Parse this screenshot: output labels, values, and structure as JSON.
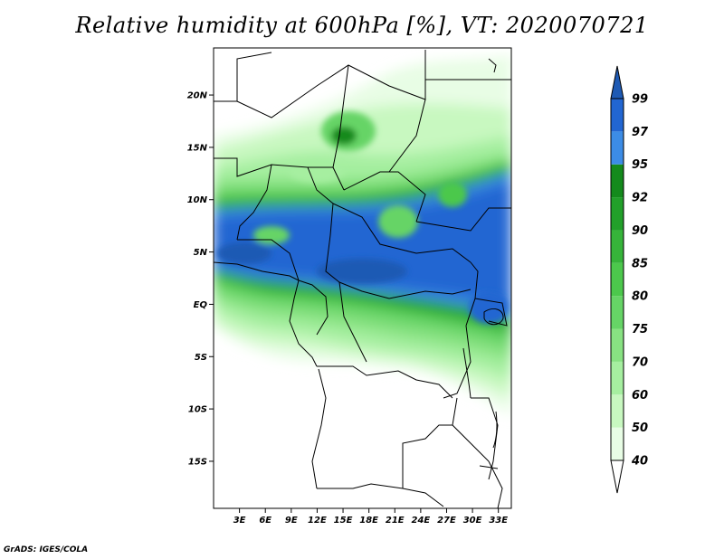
{
  "title": "Relative humidity at 600hPa [%], VT: 2020070721",
  "credit": "GrADS: IGES/COLA",
  "map": {
    "lon_range": [
      0,
      34.5
    ],
    "lat_range": [
      -19.5,
      24.5
    ],
    "lat_ticks": [
      {
        "value": 20,
        "label": "20N"
      },
      {
        "value": 15,
        "label": "15N"
      },
      {
        "value": 10,
        "label": "10N"
      },
      {
        "value": 5,
        "label": "5N"
      },
      {
        "value": 0,
        "label": "EQ"
      },
      {
        "value": -5,
        "label": "5S"
      },
      {
        "value": -10,
        "label": "10S"
      },
      {
        "value": -15,
        "label": "15S"
      }
    ],
    "lon_ticks": [
      {
        "value": 3,
        "label": "3E"
      },
      {
        "value": 6,
        "label": "6E"
      },
      {
        "value": 9,
        "label": "9E"
      },
      {
        "value": 12,
        "label": "12E"
      },
      {
        "value": 15,
        "label": "15E"
      },
      {
        "value": 18,
        "label": "18E"
      },
      {
        "value": 21,
        "label": "21E"
      },
      {
        "value": 24,
        "label": "24E"
      },
      {
        "value": 27,
        "label": "27E"
      },
      {
        "value": 30,
        "label": "30E"
      },
      {
        "value": 33,
        "label": "33E"
      }
    ]
  },
  "colorbar": {
    "levels": [
      {
        "label": "40",
        "color": "#e8fde5"
      },
      {
        "label": "50",
        "color": "#c8f8c0"
      },
      {
        "label": "60",
        "color": "#a6efa0"
      },
      {
        "label": "70",
        "color": "#88e282"
      },
      {
        "label": "75",
        "color": "#66d466"
      },
      {
        "label": "80",
        "color": "#4cc84c"
      },
      {
        "label": "85",
        "color": "#36b43a"
      },
      {
        "label": "90",
        "color": "#22a02a"
      },
      {
        "label": "92",
        "color": "#148a1c"
      },
      {
        "label": "95",
        "color": "#3c8ce6"
      },
      {
        "label": "97",
        "color": "#2266d2"
      },
      {
        "label": "99",
        "color": "#1e5ab4"
      }
    ],
    "below_color": "#ffffff",
    "above_color": "#1e5ab4"
  }
}
